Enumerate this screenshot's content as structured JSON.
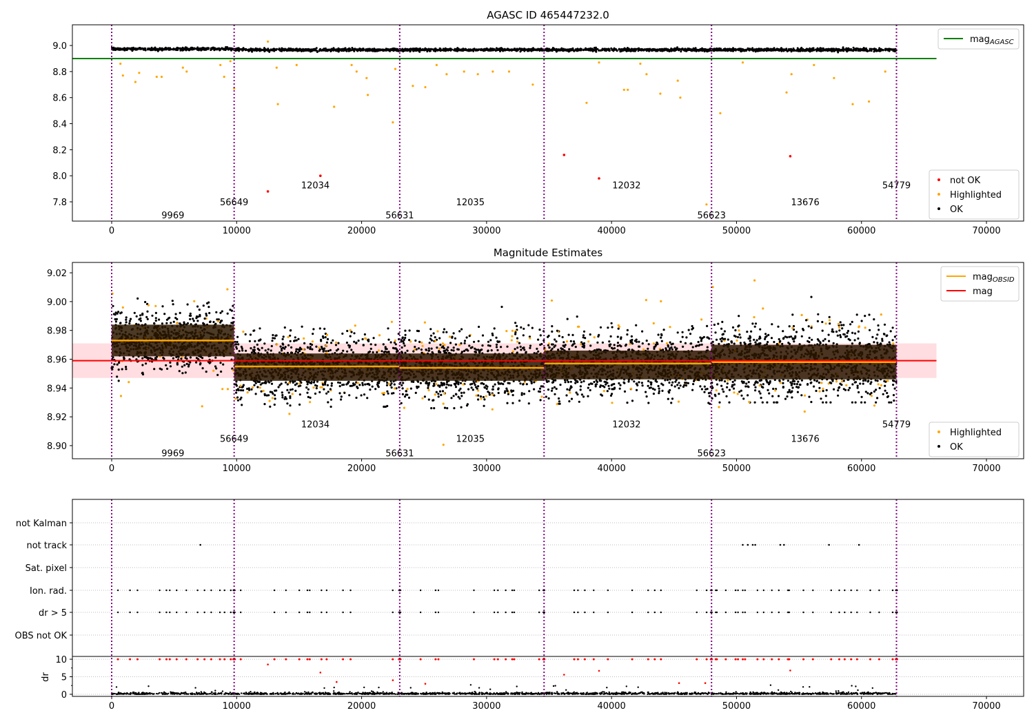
{
  "chart_data": [
    {
      "type": "scatter",
      "title": "AGASC ID 465447232.0",
      "xlim": [
        -3144,
        72977
      ],
      "ylim": [
        7.652,
        9.159
      ],
      "xticks": [
        0,
        10000,
        20000,
        30000,
        40000,
        50000,
        60000,
        70000
      ],
      "yticks": [
        7.8,
        8.0,
        8.2,
        8.4,
        8.6,
        8.8,
        9.0
      ],
      "ytick_labels": [
        "7.8",
        "8.0",
        "8.2",
        "8.4",
        "8.6",
        "8.8",
        "9.0"
      ],
      "mag_agasc": 8.9,
      "mag_agasc_xrange": [
        -3144,
        66000
      ],
      "ok_band": {
        "mean": 8.967,
        "spread": 0.009
      },
      "not_ok_points": [
        [
          12500,
          7.88
        ],
        [
          16700,
          8.0
        ],
        [
          36200,
          8.16
        ],
        [
          39000,
          7.98
        ],
        [
          54300,
          8.15
        ]
      ],
      "highlighted_points": [
        [
          700,
          8.86
        ],
        [
          900,
          8.77
        ],
        [
          1900,
          8.72
        ],
        [
          2200,
          8.79
        ],
        [
          3600,
          8.76
        ],
        [
          4000,
          8.76
        ],
        [
          5700,
          8.83
        ],
        [
          6000,
          8.8
        ],
        [
          8700,
          8.85
        ],
        [
          9000,
          8.76
        ],
        [
          9500,
          8.88
        ],
        [
          9800,
          8.67
        ],
        [
          12500,
          9.03
        ],
        [
          13200,
          8.83
        ],
        [
          13300,
          8.55
        ],
        [
          14800,
          8.85
        ],
        [
          17800,
          8.53
        ],
        [
          19200,
          8.85
        ],
        [
          19600,
          8.8
        ],
        [
          20400,
          8.75
        ],
        [
          20500,
          8.62
        ],
        [
          22500,
          8.41
        ],
        [
          22700,
          8.82
        ],
        [
          24100,
          8.69
        ],
        [
          25100,
          8.68
        ],
        [
          26000,
          8.85
        ],
        [
          26800,
          8.78
        ],
        [
          28200,
          8.8
        ],
        [
          29300,
          8.78
        ],
        [
          30500,
          8.8
        ],
        [
          31800,
          8.8
        ],
        [
          33700,
          8.7
        ],
        [
          38000,
          8.56
        ],
        [
          39000,
          8.87
        ],
        [
          41000,
          8.66
        ],
        [
          41300,
          8.66
        ],
        [
          42300,
          8.86
        ],
        [
          42800,
          8.78
        ],
        [
          43900,
          8.63
        ],
        [
          45300,
          8.73
        ],
        [
          45500,
          8.6
        ],
        [
          47600,
          7.78
        ],
        [
          48700,
          8.48
        ],
        [
          50500,
          8.87
        ],
        [
          54000,
          8.64
        ],
        [
          54400,
          8.78
        ],
        [
          56200,
          8.85
        ],
        [
          57800,
          8.75
        ],
        [
          59300,
          8.55
        ],
        [
          60600,
          8.57
        ],
        [
          61900,
          8.8
        ]
      ],
      "legend": {
        "placement": "right",
        "top": [
          {
            "label": "mag",
            "sub": "AGASC",
            "color": "#008000"
          }
        ],
        "bottom": [
          {
            "label": "not OK",
            "color": "#ff0000"
          },
          {
            "label": "Highlighted",
            "color": "#ffa500"
          },
          {
            "label": "OK",
            "color": "#000000"
          }
        ]
      },
      "obsid_labels_y": [
        7.7,
        7.8,
        7.93
      ]
    },
    {
      "type": "scatter",
      "title": "Magnitude Estimates",
      "xlim": [
        -3144,
        72977
      ],
      "ylim": [
        8.8909,
        9.0272
      ],
      "xticks": [
        0,
        10000,
        20000,
        30000,
        40000,
        50000,
        60000,
        70000
      ],
      "yticks": [
        8.9,
        8.92,
        8.94,
        8.96,
        8.98,
        9.0,
        9.02
      ],
      "ytick_labels": [
        "8.90",
        "8.92",
        "8.94",
        "8.96",
        "8.98",
        "9.00",
        "9.02"
      ],
      "mag": 8.959,
      "mag_band": [
        8.947,
        8.971
      ],
      "mag_xrange": [
        -3144,
        66000
      ],
      "segments": [
        {
          "start": 0,
          "stop": 9800,
          "mag_obsid": 8.973,
          "box": [
            8.962,
            8.984
          ],
          "spread": 0.01
        },
        {
          "start": 9800,
          "stop": 23050,
          "mag_obsid": 8.955,
          "box": [
            8.945,
            8.964
          ],
          "spread": 0.011
        },
        {
          "start": 23050,
          "stop": 34600,
          "mag_obsid": 8.954,
          "box": [
            8.945,
            8.964
          ],
          "spread": 0.011
        },
        {
          "start": 34600,
          "stop": 48000,
          "mag_obsid": 8.957,
          "box": [
            8.946,
            8.966
          ],
          "spread": 0.011
        },
        {
          "start": 48000,
          "stop": 62800,
          "mag_obsid": 8.958,
          "box": [
            8.946,
            8.97
          ],
          "spread": 0.013
        }
      ],
      "legend": {
        "placement": "right",
        "top": [
          {
            "label": "mag",
            "sub": "OBSID",
            "color": "#ffa500"
          },
          {
            "label": "mag",
            "color": "#ff0000"
          }
        ],
        "bottom": [
          {
            "label": "Highlighted",
            "color": "#ffa500"
          },
          {
            "label": "OK",
            "color": "#000000"
          }
        ]
      },
      "obsid_labels_y": [
        8.895,
        8.905,
        8.915
      ]
    },
    {
      "type": "scatter",
      "xlim": [
        -3144,
        72977
      ],
      "flag_rows": [
        "not Kalman",
        "not track",
        "Sat. pixel",
        "Ion. rad.",
        "dr > 5",
        "OBS not OK"
      ],
      "not_track_times": [
        7100,
        50500,
        50900,
        51300,
        51500,
        53500,
        53800,
        57400,
        59800
      ],
      "dr_ylabel": "dr",
      "dr_ylim": [
        -0.6,
        10.8
      ],
      "dr_yticks": [
        0,
        5,
        10
      ],
      "dr_ytick_labels": [
        "0",
        "5",
        "10"
      ],
      "dr_midvalues": [
        [
          12500,
          8.5
        ],
        [
          16700,
          6.2
        ],
        [
          18000,
          3.5
        ],
        [
          22500,
          4.0
        ],
        [
          25100,
          3.0
        ],
        [
          36200,
          5.6
        ],
        [
          39000,
          6.7
        ],
        [
          45400,
          3.2
        ],
        [
          47500,
          3.2
        ],
        [
          54300,
          6.8
        ]
      ]
    }
  ],
  "obsids": [
    {
      "obsid": "9969",
      "time": 0,
      "label_x": 4900,
      "level": 0
    },
    {
      "obsid": "56649",
      "time": 9800,
      "label_x": 9800,
      "level": 1
    },
    {
      "obsid": "12034",
      "time": 23050,
      "label_x": 16300,
      "level": 2
    },
    {
      "obsid": "56631",
      "time": 23050,
      "label_x": 23050,
      "level": 0
    },
    {
      "obsid": "12035",
      "time": 34600,
      "label_x": 28700,
      "level": 1
    },
    {
      "obsid": "12032",
      "time": 48000,
      "label_x": 41200,
      "level": 2
    },
    {
      "obsid": "56623",
      "time": 48000,
      "label_x": 48000,
      "level": 0
    },
    {
      "obsid": "13676",
      "time": 62800,
      "label_x": 55500,
      "level": 1
    },
    {
      "obsid": "54779",
      "time": 62800,
      "label_x": 62800,
      "level": 2
    }
  ],
  "boundaries": [
    0,
    9800,
    23050,
    34600,
    48000,
    62800
  ],
  "colors": {
    "ok": "#000000",
    "highlighted": "#ffa500",
    "not_ok": "#ff0000",
    "agasc": "#008000",
    "boundary": "#800080",
    "band": "#ffdde0",
    "box": "#2b1700"
  }
}
